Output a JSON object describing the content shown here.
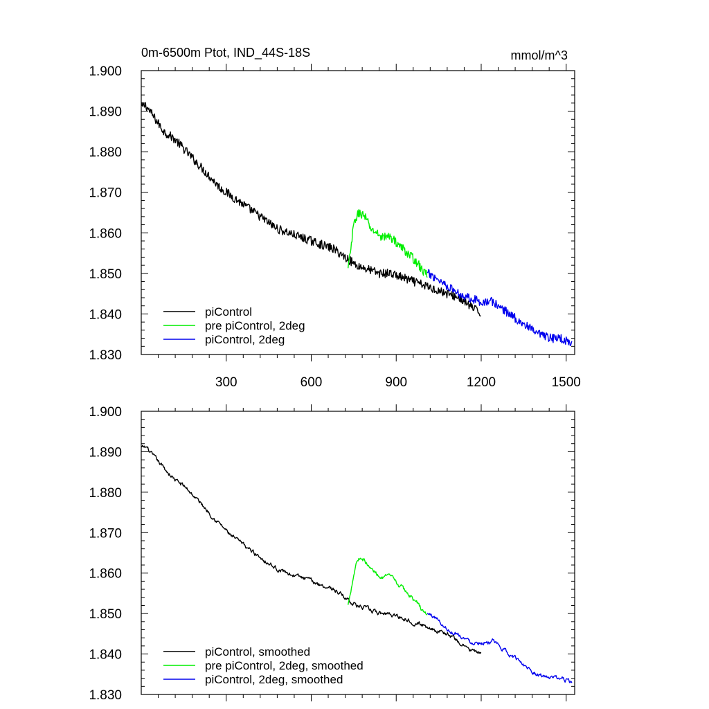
{
  "figure": {
    "title_left": "0m-6500m Ptot, IND_44S-18S",
    "title_right": "mmol/m^3"
  },
  "chart_data": [
    {
      "type": "line",
      "title": "0m-6500m Ptot, IND_44S-18S",
      "units": "mmol/m^3",
      "xlim": [
        0,
        1530
      ],
      "ylim": [
        1.83,
        1.9
      ],
      "xticks": [
        300,
        600,
        900,
        1200,
        1500
      ],
      "xtick_labels": [
        "300",
        "600",
        "900",
        "1200",
        "1500"
      ],
      "yticks": [
        1.83,
        1.84,
        1.85,
        1.86,
        1.87,
        1.88,
        1.89,
        1.9
      ],
      "ytick_labels": [
        "1.830",
        "1.840",
        "1.850",
        "1.860",
        "1.870",
        "1.880",
        "1.890",
        "1.900"
      ],
      "legend_position": "lower-left",
      "series": [
        {
          "name": "piControl",
          "color": "#000000",
          "noise": 0.0011,
          "x": [
            1,
            15,
            40,
            80,
            120,
            160,
            200,
            240,
            280,
            320,
            360,
            400,
            440,
            480,
            520,
            560,
            600,
            640,
            680,
            720,
            760,
            800,
            840,
            880,
            920,
            960,
            1000,
            1040,
            1080,
            1120,
            1160,
            1200
          ],
          "y": [
            1.891,
            1.8915,
            1.889,
            1.885,
            1.883,
            1.88,
            1.877,
            1.874,
            1.871,
            1.869,
            1.867,
            1.865,
            1.863,
            1.861,
            1.86,
            1.859,
            1.858,
            1.857,
            1.856,
            1.854,
            1.852,
            1.851,
            1.85,
            1.85,
            1.849,
            1.848,
            1.847,
            1.846,
            1.845,
            1.844,
            1.842,
            1.84
          ]
        },
        {
          "name": "pre piControl, 2deg",
          "color": "#00ee00",
          "noise": 0.0011,
          "x": [
            730,
            740,
            750,
            760,
            770,
            790,
            810,
            830,
            850,
            880,
            910,
            940,
            970,
            1000,
            1010
          ],
          "y": [
            1.851,
            1.856,
            1.862,
            1.864,
            1.865,
            1.864,
            1.861,
            1.86,
            1.859,
            1.859,
            1.857,
            1.855,
            1.853,
            1.85,
            1.85
          ]
        },
        {
          "name": "piControl, 2deg",
          "color": "#0000ee",
          "noise": 0.0011,
          "x": [
            1010,
            1040,
            1080,
            1120,
            1160,
            1200,
            1240,
            1280,
            1320,
            1360,
            1400,
            1440,
            1480,
            1520
          ],
          "y": [
            1.85,
            1.849,
            1.847,
            1.845,
            1.844,
            1.843,
            1.843,
            1.841,
            1.839,
            1.837,
            1.835,
            1.834,
            1.834,
            1.833
          ]
        }
      ]
    },
    {
      "type": "line",
      "xlim": [
        0,
        1530
      ],
      "ylim": [
        1.83,
        1.9
      ],
      "xticks": [
        300,
        600,
        900,
        1200,
        1500
      ],
      "yticks": [
        1.83,
        1.84,
        1.85,
        1.86,
        1.87,
        1.88,
        1.89,
        1.9
      ],
      "ytick_labels": [
        "1.830",
        "1.840",
        "1.850",
        "1.860",
        "1.870",
        "1.880",
        "1.890",
        "1.900"
      ],
      "legend_position": "lower-left",
      "series": [
        {
          "name": "piControl, smoothed",
          "color": "#000000",
          "noise": 0.00045,
          "x": [
            1,
            20,
            40,
            80,
            120,
            160,
            200,
            240,
            280,
            320,
            360,
            400,
            440,
            480,
            520,
            560,
            600,
            640,
            680,
            720,
            760,
            800,
            840,
            880,
            920,
            960,
            1000,
            1040,
            1080,
            1120,
            1160,
            1200
          ],
          "y": [
            1.891,
            1.891,
            1.889,
            1.886,
            1.883,
            1.881,
            1.878,
            1.875,
            1.872,
            1.869,
            1.867,
            1.865,
            1.863,
            1.861,
            1.86,
            1.859,
            1.858,
            1.857,
            1.856,
            1.854,
            1.852,
            1.851,
            1.85,
            1.85,
            1.849,
            1.848,
            1.847,
            1.846,
            1.845,
            1.843,
            1.841,
            1.84
          ]
        },
        {
          "name": "pre piControl, 2deg, smoothed",
          "color": "#00ee00",
          "noise": 0.00045,
          "x": [
            730,
            745,
            760,
            775,
            790,
            810,
            830,
            850,
            880,
            910,
            940,
            970,
            1000,
            1010
          ],
          "y": [
            1.852,
            1.858,
            1.863,
            1.864,
            1.863,
            1.861,
            1.86,
            1.859,
            1.859,
            1.857,
            1.855,
            1.853,
            1.85,
            1.85
          ]
        },
        {
          "name": "piControl, 2deg, smoothed",
          "color": "#0000ee",
          "noise": 0.00045,
          "x": [
            1010,
            1040,
            1080,
            1120,
            1160,
            1200,
            1240,
            1280,
            1320,
            1360,
            1400,
            1440,
            1480,
            1520
          ],
          "y": [
            1.85,
            1.849,
            1.846,
            1.845,
            1.843,
            1.843,
            1.843,
            1.841,
            1.839,
            1.837,
            1.835,
            1.834,
            1.834,
            1.833
          ]
        }
      ]
    }
  ]
}
